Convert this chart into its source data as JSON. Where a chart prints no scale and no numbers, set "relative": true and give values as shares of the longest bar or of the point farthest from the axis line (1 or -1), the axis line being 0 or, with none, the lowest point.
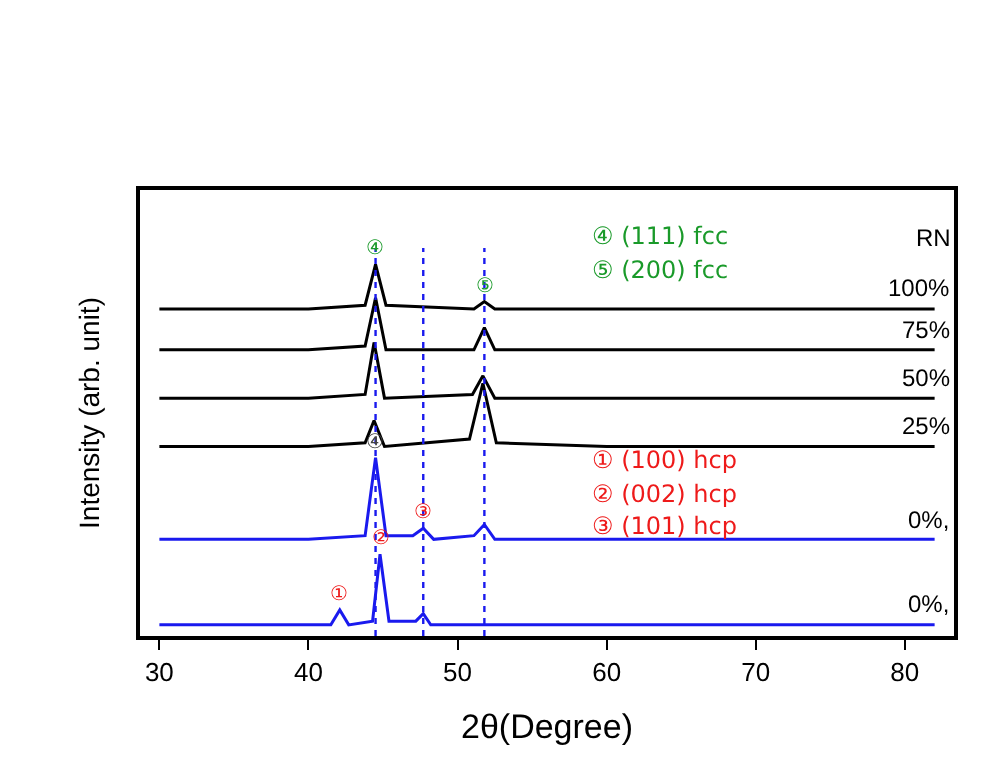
{
  "chart_data": {
    "type": "line",
    "relative": true,
    "xlabel": "2θ(Degree)",
    "ylabel": "Intensity (arb. unit)",
    "legend_title": "RN",
    "legend": false,
    "marker": "none",
    "line_style": "solid",
    "xlim": [
      28.7,
      83.3
    ],
    "xticks": [
      30,
      40,
      50,
      60,
      70,
      80
    ],
    "series": [
      {
        "name": "100%",
        "color": "#000000",
        "x": [
          30,
          40,
          43.8,
          44.5,
          45.2,
          51.1,
          51.8,
          52.5,
          60,
          70,
          82
        ],
        "values": [
          0.88,
          0.88,
          0.89,
          1.0,
          0.89,
          0.88,
          0.9,
          0.88,
          0.88,
          0.88,
          0.88
        ]
      },
      {
        "name": "75%",
        "color": "#000000",
        "x": [
          30,
          40,
          43.8,
          44.5,
          45.2,
          51.1,
          51.8,
          52.5,
          60,
          70,
          82
        ],
        "values": [
          0.77,
          0.77,
          0.78,
          0.91,
          0.77,
          0.77,
          0.83,
          0.77,
          0.77,
          0.77,
          0.77
        ]
      },
      {
        "name": "50%",
        "color": "#000000",
        "x": [
          30,
          40,
          43.8,
          44.4,
          45.1,
          51.0,
          51.7,
          52.5,
          60,
          70,
          82
        ],
        "values": [
          0.64,
          0.64,
          0.65,
          0.79,
          0.64,
          0.65,
          0.7,
          0.64,
          0.64,
          0.64,
          0.64
        ]
      },
      {
        "name": "25%",
        "color": "#000000",
        "x": [
          30,
          40,
          43.8,
          44.4,
          45.1,
          50.8,
          51.7,
          52.6,
          60,
          70,
          82
        ],
        "values": [
          0.51,
          0.51,
          0.52,
          0.58,
          0.51,
          0.53,
          0.68,
          0.52,
          0.51,
          0.51,
          0.51
        ]
      },
      {
        "name": "0%,",
        "color": "#1a1aee",
        "x": [
          30,
          40,
          43.8,
          44.5,
          45.2,
          47,
          47.7,
          48.4,
          51.1,
          51.8,
          52.5,
          60,
          70,
          82
        ],
        "values": [
          0.26,
          0.26,
          0.27,
          0.48,
          0.27,
          0.27,
          0.29,
          0.26,
          0.27,
          0.3,
          0.26,
          0.26,
          0.26,
          0.26
        ]
      },
      {
        "name": "0%,",
        "color": "#1a1aee",
        "x": [
          30,
          41.5,
          42.1,
          42.7,
          44.3,
          44.8,
          45.4,
          47.2,
          47.7,
          48.2,
          60,
          70,
          82
        ],
        "values": [
          0.03,
          0.03,
          0.07,
          0.03,
          0.04,
          0.22,
          0.04,
          0.04,
          0.06,
          0.03,
          0.03,
          0.03,
          0.03
        ]
      }
    ],
    "ref_lines": [
      {
        "axis": "x",
        "value": 44.5,
        "color": "#1a1aee",
        "line_style": "dotted"
      },
      {
        "axis": "x",
        "value": 51.8,
        "color": "#1a1aee",
        "line_style": "dotted"
      },
      {
        "axis": "x",
        "value": 47.7,
        "color": "#1a1aee",
        "line_style": "dotted"
      }
    ],
    "annotations": [
      {
        "text": "④",
        "x": 44.5,
        "y": 1.0
      },
      {
        "text": "⑤",
        "x": 51.8,
        "y": 0.9
      },
      {
        "text": "④",
        "x": 44.5,
        "y": 0.48
      },
      {
        "text": "③",
        "x": 47.7,
        "y": 0.29
      },
      {
        "text": "②",
        "x": 44.8,
        "y": 0.22
      },
      {
        "text": "①",
        "x": 42.1,
        "y": 0.07
      },
      "④ (111) fcc",
      "⑤ (200) fcc",
      "① (100) hcp",
      "② (002) hcp",
      "③ (101) hcp"
    ]
  }
}
